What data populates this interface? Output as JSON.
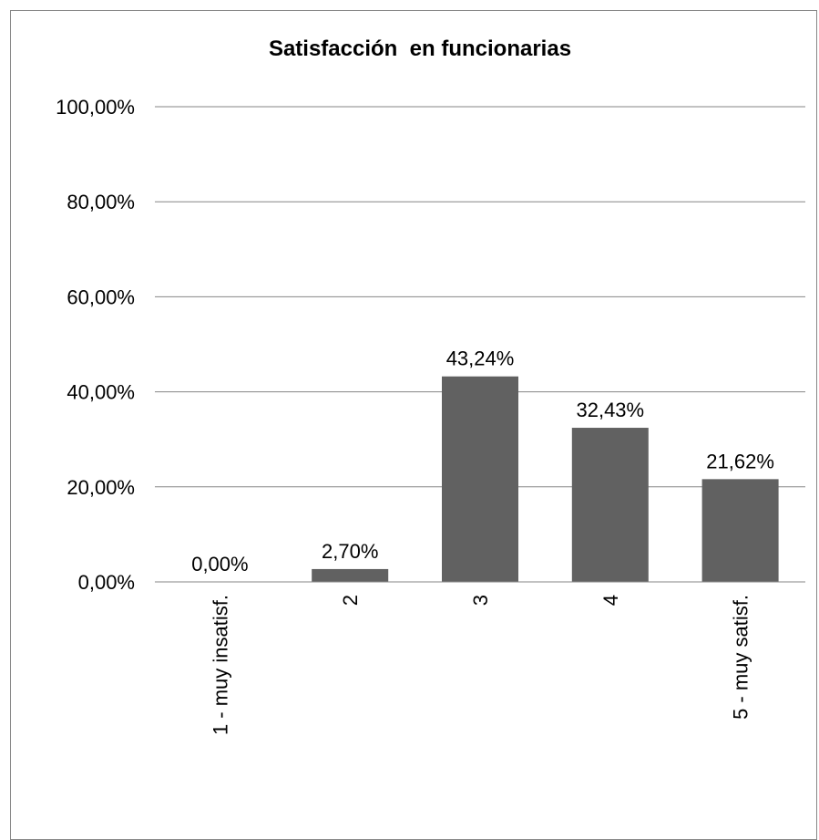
{
  "chart_data": {
    "type": "bar",
    "title": "Satisfacción  en funcionarias",
    "xlabel": "",
    "ylabel": "",
    "categories": [
      "1 - muy insatisf.",
      "2",
      "3",
      "4",
      "5 - muy satisf."
    ],
    "values": [
      0.0,
      2.7,
      43.24,
      32.43,
      21.62
    ],
    "data_labels": [
      "0,00%",
      "2,70%",
      "43,24%",
      "32,43%",
      "21,62%"
    ],
    "ylim": [
      0,
      100
    ],
    "yticks": [
      0,
      20,
      40,
      60,
      80,
      100
    ],
    "ytick_labels": [
      "0,00%",
      "20,00%",
      "40,00%",
      "60,00%",
      "80,00%",
      "100,00%"
    ],
    "grid": true,
    "legend": "none",
    "bar_color": "#616161",
    "gridline_color": "#868686"
  }
}
